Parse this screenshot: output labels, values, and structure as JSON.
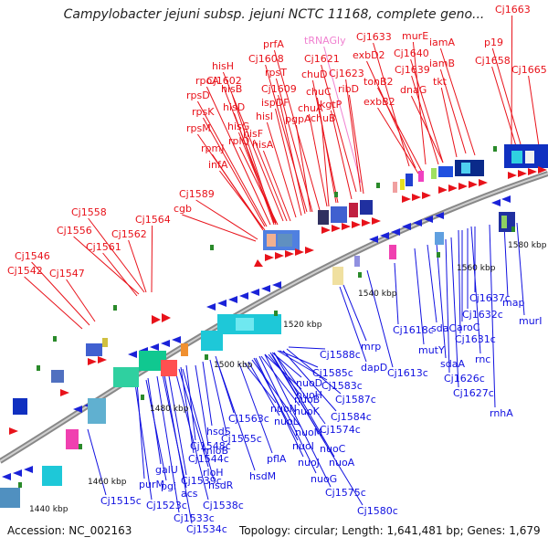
{
  "title": "Campylobacter jejuni subsp. jejuni NCTC 11168, complete geno...",
  "footer": {
    "accession": "Accession: NC_002163",
    "summary": "Topology: circular; Length: 1,641,481 bp; Genes: 1,679"
  },
  "colors": {
    "forward_label": "#e8121a",
    "reverse_label": "#1010e0",
    "rna_label": "#f080d0",
    "backbone": "#888888",
    "tick": "#2a8a2a"
  },
  "scale_labels": [
    "1440 kbp",
    "1460 kbp",
    "1480 kbp",
    "1500 kbp",
    "1520 kbp",
    "1540 kbp",
    "1560 kbp",
    "1580 kbp"
  ],
  "forward_genes": [
    "Cj1663",
    "Cj1633",
    "murE",
    "iamA",
    "exbD2",
    "Cj1640",
    "p19",
    "Cj1658",
    "iamB",
    "Cj1639",
    "Cj1665",
    "tonB2",
    "dnaG",
    "tkt",
    "exbB2",
    "tRNAGly",
    "prfA",
    "Cj1621",
    "Cj1608",
    "Cj1623",
    "chuD",
    "rpsT",
    "hisH",
    "Cj1602",
    "ribD",
    "chuC",
    "Cj1609",
    "hisB",
    "ispDF",
    "kgtP",
    "chuA",
    "rpoA",
    "chuB",
    "rpsD",
    "hisD",
    "pgpA",
    "rpsK",
    "hisI",
    "hisG",
    "rpsM",
    "hisF",
    "rplQ",
    "rpmJ",
    "hisA",
    "infA",
    "Cj1589",
    "cgb",
    "Cj1558",
    "Cj1564",
    "Cj1556",
    "Cj1562",
    "Cj1561",
    "Cj1546",
    "Cj1542",
    "Cj1547"
  ],
  "reverse_genes": [
    "Cj1580c",
    "Cj1575c",
    "nuoG",
    "nuoJ",
    "nuoA",
    "nuoC",
    "nuoI",
    "Cj1574c",
    "nuoM",
    "nuoL",
    "nuoN",
    "nuoK",
    "nuoH",
    "nuoB",
    "nuoD",
    "Cj1583c",
    "Cj1584c",
    "Cj1585c",
    "Cj1587c",
    "Cj1588c",
    "mrp",
    "dapD",
    "Cj1613c",
    "Cj1618c",
    "mutY",
    "sdaC",
    "sdaA",
    "Cj1626c",
    "Cj1627c",
    "Cj1632c",
    "aroC",
    "Cj1631c",
    "rnc",
    "rnhA",
    "Cj1637c",
    "map",
    "murI",
    "Cj1563c",
    "hsdS",
    "Cj1555c",
    "pflA",
    "Cj1548c",
    "Cj1544c",
    "mloB",
    "rloH",
    "hsdM",
    "hsdR",
    "Cj1539c",
    "Cj1538c",
    "acs",
    "galU",
    "pgi",
    "purM",
    "Cj1523c",
    "Cj1533c",
    "Cj1534c",
    "Cj1515c"
  ]
}
